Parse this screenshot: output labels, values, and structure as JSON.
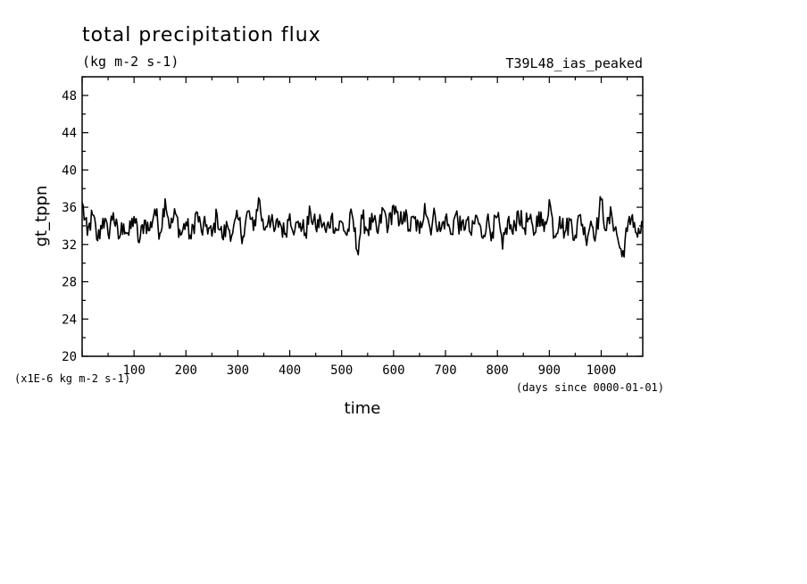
{
  "chart_data": {
    "type": "line",
    "title": "total precipitation flux",
    "units": "(kg m-2 s-1)",
    "experiment": "T39L48_ias_peaked",
    "xlabel": "time",
    "xunits": "(days since 0000-01-01)",
    "ylabel": "gt_tppn",
    "yunits": "(x1E-6 kg m-2 s-1)",
    "xlim": [
      0,
      1080
    ],
    "ylim": [
      20,
      50
    ],
    "xticks": [
      100,
      200,
      300,
      400,
      500,
      600,
      700,
      800,
      900,
      1000
    ],
    "yticks": [
      20,
      24,
      28,
      32,
      36,
      40,
      44,
      48
    ],
    "grid": false,
    "series": [
      {
        "name": "",
        "color": "#000000",
        "x": [
          0,
          10,
          20,
          30,
          40,
          50,
          60,
          70,
          80,
          90,
          100,
          110,
          120,
          130,
          140,
          150,
          160,
          170,
          180,
          190,
          200,
          210,
          220,
          230,
          240,
          250,
          260,
          270,
          280,
          290,
          300,
          310,
          320,
          330,
          340,
          350,
          360,
          370,
          380,
          390,
          400,
          410,
          420,
          430,
          440,
          450,
          460,
          470,
          480,
          490,
          500,
          510,
          520,
          530,
          540,
          550,
          560,
          570,
          580,
          590,
          600,
          610,
          620,
          630,
          640,
          650,
          660,
          670,
          680,
          690,
          700,
          710,
          720,
          730,
          740,
          750,
          760,
          770,
          780,
          790,
          800,
          810,
          820,
          830,
          840,
          850,
          860,
          870,
          880,
          890,
          900,
          910,
          920,
          930,
          940,
          950,
          960,
          970,
          980,
          990,
          1000,
          1010,
          1020,
          1030,
          1040,
          1050,
          1060,
          1070,
          1080
        ],
        "y": [
          36.5,
          33.0,
          35.2,
          32.4,
          34.8,
          33.1,
          35.4,
          32.6,
          34.2,
          33.0,
          35.0,
          32.2,
          34.6,
          33.5,
          35.8,
          33.2,
          36.9,
          33.8,
          35.3,
          33.0,
          34.4,
          32.6,
          35.5,
          33.4,
          34.1,
          32.9,
          35.2,
          32.7,
          34.0,
          33.2,
          34.8,
          32.9,
          35.6,
          33.5,
          37.0,
          33.6,
          35.1,
          33.4,
          34.5,
          33.1,
          35.3,
          33.6,
          34.3,
          33.2,
          35.4,
          33.8,
          34.6,
          33.3,
          35.0,
          33.5,
          34.4,
          33.0,
          35.2,
          31.3,
          34.8,
          33.6,
          34.4,
          33.2,
          35.8,
          33.9,
          36.2,
          34.0,
          35.5,
          33.6,
          34.8,
          33.2,
          36.4,
          33.8,
          35.2,
          33.4,
          34.9,
          33.1,
          35.3,
          33.5,
          34.6,
          33.0,
          35.1,
          32.8,
          34.7,
          33.3,
          35.0,
          31.5,
          34.6,
          33.1,
          35.6,
          33.7,
          34.8,
          33.0,
          35.5,
          33.4,
          36.8,
          32.9,
          35.0,
          33.3,
          34.6,
          33.0,
          35.2,
          32.7,
          34.5,
          33.2,
          36.8,
          33.5,
          35.3,
          33.1,
          30.7,
          33.4,
          35.2,
          32.8,
          33.9
        ]
      }
    ]
  }
}
